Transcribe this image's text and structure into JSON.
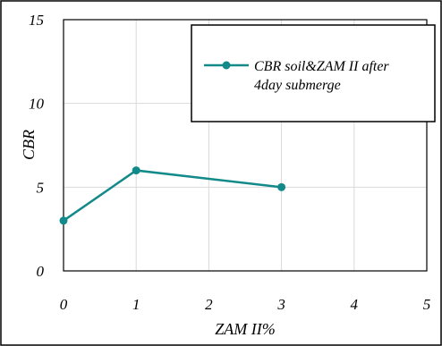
{
  "chart_data": {
    "type": "line",
    "title": "",
    "xlabel": "ZAM II%",
    "ylabel": "CBR",
    "xlim": [
      0,
      5
    ],
    "ylim": [
      0,
      15
    ],
    "x_ticks": [
      "0",
      "1",
      "2",
      "3",
      "4",
      "5"
    ],
    "y_ticks": [
      "0",
      "5",
      "10",
      "15"
    ],
    "grid": true,
    "legend_position": "top-right",
    "series": [
      {
        "name_lines": [
          "CBR soil&ZAM II after",
          "4day submerge"
        ],
        "color": "#138a8a",
        "x": [
          0,
          1,
          3
        ],
        "y": [
          3,
          6,
          5
        ]
      }
    ]
  }
}
